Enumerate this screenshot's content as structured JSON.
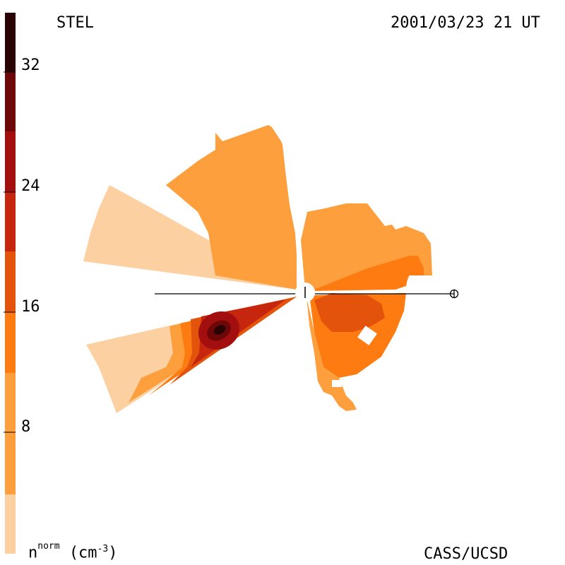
{
  "header": {
    "instrument": "STEL",
    "datetime": "2001/03/23 21 UT"
  },
  "footer": {
    "credit": "CASS/UCSD"
  },
  "colorbar": {
    "quantity": "n",
    "superscript": "norm",
    "unit_prefix": "(cm",
    "unit_exp": "-3",
    "unit_suffix": ")",
    "tick_labels": [
      "32",
      "24",
      "16",
      "8"
    ],
    "colors": [
      "#fdd0a2",
      "#fd9f3c",
      "#fd7b10",
      "#e4530c",
      "#c7260e",
      "#a30f0f",
      "#6e0808",
      "#2a0404"
    ]
  },
  "map": {
    "observer_symbol": "Earth",
    "sun_symbol": "Sun"
  }
}
